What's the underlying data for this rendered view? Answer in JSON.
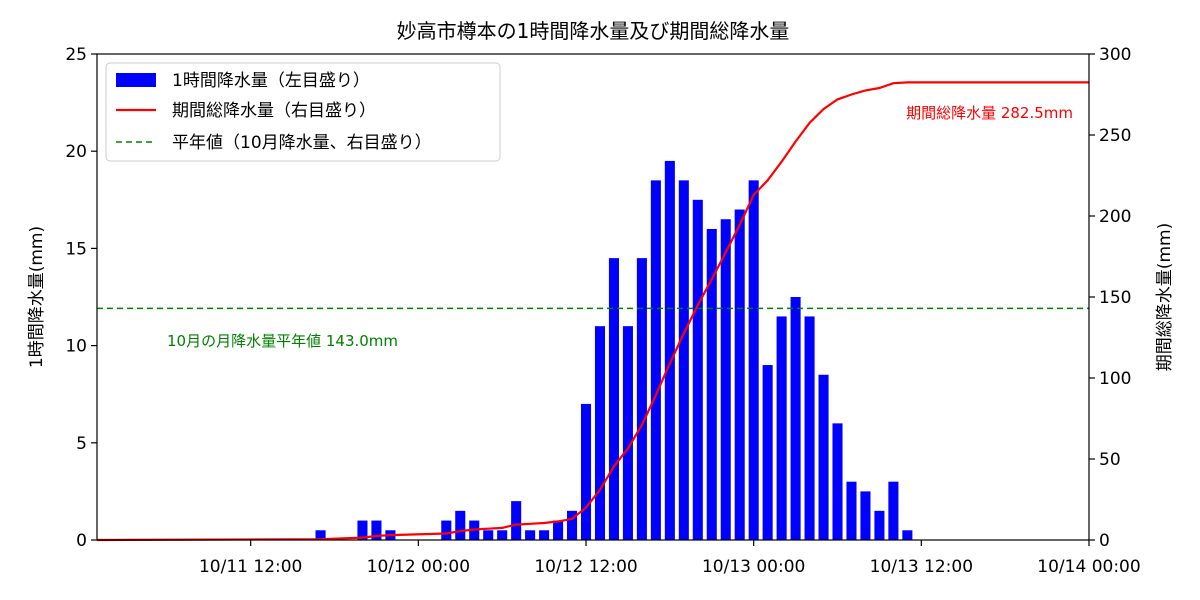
{
  "chart_data": {
    "type": "bar+line",
    "title": "妙高市樽本の1時間降水量及び期間総降水量",
    "xlabel": "",
    "ylabel_left": "1時間降水量(mm)",
    "ylabel_right": "期間総降水量(mm)",
    "ylim_left": [
      0,
      25
    ],
    "ylim_right": [
      0,
      300
    ],
    "yticks_left": [
      "0",
      "5",
      "10",
      "15",
      "20",
      "25"
    ],
    "yticks_right": [
      "0",
      "50",
      "100",
      "150",
      "200",
      "250",
      "300"
    ],
    "x_range": [
      "10/11 01:00",
      "10/14 00:00"
    ],
    "xticks": [
      "10/11 12:00",
      "10/12 00:00",
      "10/12 12:00",
      "10/13 00:00",
      "10/13 12:00",
      "10/14 00:00"
    ],
    "grid": false,
    "legend_position": "top-left",
    "legend": {
      "bar": "1時間降水量（左目盛り）",
      "line": "期間総降水量（右目盛り）",
      "normal": "平年値（10月降水量、右目盛り）"
    },
    "colors": {
      "bar": "#0000ff",
      "line": "#ff0000",
      "normal": "#008000"
    },
    "hourly_precip": {
      "times": [
        "10/11 17:00",
        "10/11 20:00",
        "10/11 21:00",
        "10/11 22:00",
        "10/12 02:00",
        "10/12 03:00",
        "10/12 04:00",
        "10/12 05:00",
        "10/12 06:00",
        "10/12 07:00",
        "10/12 08:00",
        "10/12 09:00",
        "10/12 10:00",
        "10/12 11:00",
        "10/12 12:00",
        "10/12 13:00",
        "10/12 14:00",
        "10/12 15:00",
        "10/12 16:00",
        "10/12 17:00",
        "10/12 18:00",
        "10/12 19:00",
        "10/12 20:00",
        "10/12 21:00",
        "10/12 22:00",
        "10/12 23:00",
        "10/13 00:00",
        "10/13 01:00",
        "10/13 02:00",
        "10/13 03:00",
        "10/13 04:00",
        "10/13 05:00",
        "10/13 06:00",
        "10/13 07:00",
        "10/13 08:00",
        "10/13 09:00",
        "10/13 10:00",
        "10/13 11:00"
      ],
      "values": [
        0.5,
        1.0,
        1.0,
        0.5,
        1.0,
        1.5,
        1.0,
        0.5,
        0.5,
        2.0,
        0.5,
        0.5,
        1.0,
        1.5,
        7.0,
        11.0,
        14.5,
        11.0,
        14.5,
        18.5,
        19.5,
        18.5,
        17.5,
        16.0,
        16.5,
        17.0,
        18.5,
        9.0,
        11.5,
        12.5,
        11.5,
        8.5,
        6.0,
        3.0,
        2.5,
        1.5,
        3.0,
        0.5
      ]
    },
    "cumulative_precip": {
      "times": [
        "10/11 01:00",
        "10/11 17:00",
        "10/11 20:00",
        "10/11 21:00",
        "10/11 22:00",
        "10/12 02:00",
        "10/12 03:00",
        "10/12 04:00",
        "10/12 05:00",
        "10/12 06:00",
        "10/12 07:00",
        "10/12 08:00",
        "10/12 09:00",
        "10/12 10:00",
        "10/12 11:00",
        "10/12 12:00",
        "10/12 13:00",
        "10/12 14:00",
        "10/12 15:00",
        "10/12 16:00",
        "10/12 17:00",
        "10/12 18:00",
        "10/12 19:00",
        "10/12 20:00",
        "10/12 21:00",
        "10/12 22:00",
        "10/12 23:00",
        "10/13 00:00",
        "10/13 01:00",
        "10/13 02:00",
        "10/13 03:00",
        "10/13 04:00",
        "10/13 05:00",
        "10/13 06:00",
        "10/13 07:00",
        "10/13 08:00",
        "10/13 09:00",
        "10/13 10:00",
        "10/13 11:00",
        "10/14 00:00"
      ],
      "values": [
        0,
        0.5,
        1.5,
        2.5,
        3.0,
        4.0,
        5.5,
        6.5,
        7.0,
        7.5,
        9.5,
        10.0,
        10.5,
        11.5,
        13.0,
        20.0,
        31.0,
        45.5,
        56.5,
        71.0,
        89.5,
        109.0,
        127.5,
        145.0,
        161.0,
        177.5,
        194.5,
        213.0,
        222.0,
        233.5,
        246.0,
        257.5,
        266.0,
        272.0,
        275.0,
        277.5,
        279.0,
        282.0,
        282.5,
        282.5
      ]
    },
    "normal_value": 143.0,
    "annotations": {
      "total": "期間総降水量 282.5mm",
      "normal": "10月の月降水量平年値 143.0mm"
    }
  }
}
